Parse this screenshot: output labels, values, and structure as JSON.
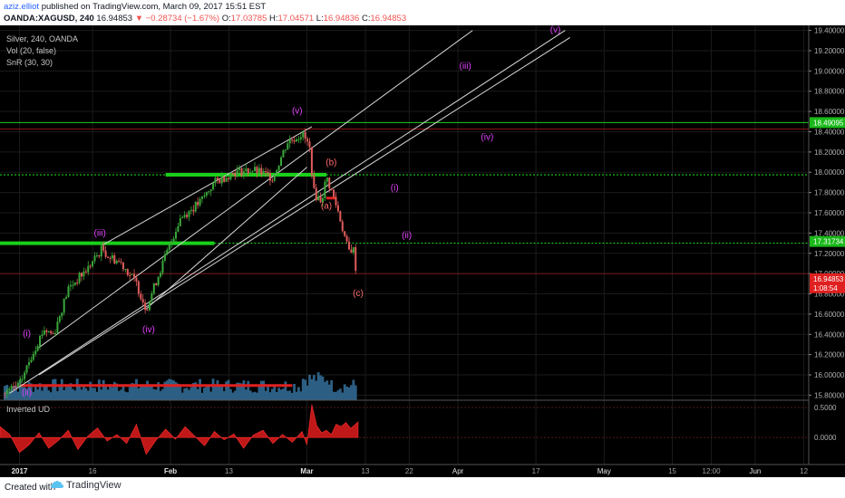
{
  "header": {
    "username": "aziz.elliot",
    "published": " published on TradingView.com, March 09, 2017 15:51 EST",
    "symbol": "OANDA:XAGUSD, 240",
    "last": "16.94853",
    "change": "▼ −0.28734 (−1.67%)",
    "o_label": "O:",
    "o_val": "17.03785",
    "h_label": "H:",
    "h_val": "17.04571",
    "l_label": "L:",
    "l_val": "16.94836",
    "c_label": "C:",
    "c_val": "16.94853"
  },
  "footer": {
    "created_with": "Created with",
    "brand": "TradingView"
  },
  "colors": {
    "background": "#000000",
    "up": "#3aa83a",
    "down": "#e05c5c",
    "volume": "#2d5f84",
    "wave_label": "#e040fb",
    "corrective_label": "#ff6b6b",
    "support": "#19d119",
    "resistance": "#e02020",
    "indicator": "#c01818"
  },
  "chart_data": [
    {
      "type": "candlestick",
      "title": "Silver, 240, OANDA",
      "studies": [
        "Vol (20, false)",
        "SnR (30, 30)"
      ],
      "ylim": [
        15.75,
        19.45
      ],
      "y_ticks": [
        "19.40000",
        "19.20000",
        "19.00000",
        "18.80000",
        "18.60000",
        "18.40000",
        "18.20000",
        "18.00000",
        "17.80000",
        "17.60000",
        "17.40000",
        "17.20000",
        "17.00000",
        "16.80000",
        "16.60000",
        "16.40000",
        "16.20000",
        "16.00000",
        "15.80000"
      ],
      "x_ticks": [
        "2017",
        "16",
        "Feb",
        "13",
        "Mar",
        "13",
        "22",
        "Apr",
        "17",
        "May",
        "15",
        "12:00",
        "Jun",
        "12"
      ],
      "x_tick_days": [
        0,
        15,
        31,
        43,
        59,
        71,
        80,
        90,
        106,
        120,
        134,
        142,
        151,
        161
      ],
      "x_range_days": [
        -4,
        162
      ],
      "price_path": [
        {
          "day": -3,
          "price": 15.82
        },
        {
          "day": 0,
          "price": 15.9
        },
        {
          "day": 3,
          "price": 16.25
        },
        {
          "day": 5,
          "price": 16.45
        },
        {
          "day": 7,
          "price": 16.4
        },
        {
          "day": 10,
          "price": 16.85
        },
        {
          "day": 14,
          "price": 17.05
        },
        {
          "day": 17,
          "price": 17.25
        },
        {
          "day": 18,
          "price": 17.18
        },
        {
          "day": 21,
          "price": 17.1
        },
        {
          "day": 24,
          "price": 16.9
        },
        {
          "day": 26,
          "price": 16.65
        },
        {
          "day": 29,
          "price": 17.05
        },
        {
          "day": 33,
          "price": 17.55
        },
        {
          "day": 37,
          "price": 17.7
        },
        {
          "day": 40,
          "price": 17.9
        },
        {
          "day": 44,
          "price": 18.0
        },
        {
          "day": 48,
          "price": 18.02
        },
        {
          "day": 52,
          "price": 17.95
        },
        {
          "day": 55,
          "price": 18.3
        },
        {
          "day": 57,
          "price": 18.35
        },
        {
          "day": 58,
          "price": 18.38
        },
        {
          "day": 59.5,
          "price": 18.25
        },
        {
          "day": 60.5,
          "price": 17.78
        },
        {
          "day": 62,
          "price": 17.72
        },
        {
          "day": 63,
          "price": 17.95
        },
        {
          "day": 64,
          "price": 17.82
        },
        {
          "day": 65.5,
          "price": 17.6
        },
        {
          "day": 67.5,
          "price": 17.22
        },
        {
          "day": 68.5,
          "price": 17.25
        },
        {
          "day": 69.3,
          "price": 16.95
        }
      ],
      "price_labels": [
        {
          "value": "18.49095",
          "price": 18.49,
          "color": "#19b919"
        },
        {
          "value": "17.31734",
          "price": 17.317,
          "color": "#19b919"
        },
        {
          "value": "16.94853",
          "price": 16.94853,
          "color": "#e02020"
        },
        {
          "value": "1:08:54",
          "price": 16.86,
          "color": "#e02020"
        }
      ],
      "levels": [
        {
          "price": 18.49,
          "color": "#19d119",
          "style": "solid",
          "from_day": -4,
          "to_day": 162,
          "weight": 1
        },
        {
          "price": 18.425,
          "color": "#e02020",
          "style": "solid",
          "from_day": -4,
          "to_day": 162,
          "weight": 0.6
        },
        {
          "price": 17.975,
          "color": "#19d119",
          "style": "dotted",
          "from_day": -4,
          "to_day": 162,
          "weight": 1.2
        },
        {
          "price": 17.975,
          "color": "#19d119",
          "style": "solid",
          "from_day": 30,
          "to_day": 63,
          "weight": 4
        },
        {
          "price": 17.3,
          "color": "#19d119",
          "style": "solid",
          "from_day": -4,
          "to_day": 40,
          "weight": 4
        },
        {
          "price": 17.3,
          "color": "#19d119",
          "style": "dotted",
          "from_day": 40,
          "to_day": 162,
          "weight": 1.2
        },
        {
          "price": 17.0,
          "color": "#e02020",
          "style": "solid",
          "from_day": -4,
          "to_day": 162,
          "weight": 0.6
        },
        {
          "price": 15.895,
          "color": "#e02020",
          "style": "solid",
          "from_day": 0,
          "to_day": 56,
          "weight": 3
        },
        {
          "price": 17.745,
          "color": "#e02020",
          "style": "solid",
          "from_day": 63,
          "to_day": 65,
          "weight": 3
        }
      ],
      "trendlines": [
        {
          "from": [
            4,
            16.27
          ],
          "to": [
            93,
            19.4
          ]
        },
        {
          "from": [
            -2,
            15.82
          ],
          "to": [
            112,
            19.4
          ]
        },
        {
          "from": [
            4,
            16.0
          ],
          "to": [
            113,
            19.33
          ]
        },
        {
          "from": [
            17,
            17.28
          ],
          "to": [
            60,
            18.45
          ]
        },
        {
          "from": [
            26,
            16.65
          ],
          "to": [
            59,
            18.05
          ]
        }
      ],
      "wave_labels": [
        {
          "text": "(i)",
          "day": 1.5,
          "price": 16.38,
          "color": "#e040fb"
        },
        {
          "text": "(ii)",
          "day": 1.5,
          "price": 15.8,
          "color": "#e040fb"
        },
        {
          "text": "(iii)",
          "day": 16.5,
          "price": 17.37,
          "color": "#e040fb"
        },
        {
          "text": "(iv)",
          "day": 26.5,
          "price": 16.42,
          "color": "#e040fb"
        },
        {
          "text": "(v)",
          "day": 57,
          "price": 18.58,
          "color": "#e040fb"
        },
        {
          "text": "(b)",
          "day": 64,
          "price": 18.07,
          "color": "#ff6b6b"
        },
        {
          "text": "(a)",
          "day": 63,
          "price": 17.64,
          "color": "#ff6b6b"
        },
        {
          "text": "(c)",
          "day": 69.5,
          "price": 16.78,
          "color": "#ff6b6b"
        },
        {
          "text": "(i)",
          "day": 77,
          "price": 17.82,
          "color": "#e040fb"
        },
        {
          "text": "(ii)",
          "day": 79.5,
          "price": 17.35,
          "color": "#e040fb"
        },
        {
          "text": "(iii)",
          "day": 91.5,
          "price": 19.02,
          "color": "#e040fb"
        },
        {
          "text": "(iv)",
          "day": 96,
          "price": 18.32,
          "color": "#e040fb"
        },
        {
          "text": "(v)",
          "day": 110,
          "price": 19.38,
          "color": "#e040fb"
        }
      ]
    },
    {
      "type": "area",
      "title": "Inverted UD",
      "ylim": [
        -0.45,
        0.62
      ],
      "y_ticks": [
        "0.5000",
        "0.0000"
      ],
      "y_tick_values": [
        0.5,
        0.0
      ],
      "x": [
        -4,
        -2,
        0,
        2,
        4,
        6,
        8,
        10,
        12,
        14,
        16,
        18,
        20,
        22,
        24,
        26,
        28,
        30,
        32,
        34,
        36,
        38,
        40,
        42,
        44,
        46,
        48,
        50,
        52,
        54,
        56,
        58,
        59,
        60,
        61,
        62,
        63,
        64,
        65,
        66,
        67,
        68,
        69.5
      ],
      "values": [
        0.18,
        0.05,
        -0.25,
        -0.12,
        0.08,
        -0.18,
        -0.05,
        0.12,
        -0.2,
        0.02,
        0.16,
        -0.06,
        0.05,
        -0.1,
        0.22,
        -0.28,
        -0.05,
        0.14,
        -0.03,
        0.18,
        0.02,
        -0.14,
        0.1,
        -0.04,
        0.06,
        -0.18,
        0.04,
        0.12,
        -0.1,
        0.05,
        -0.08,
        0.1,
        -0.12,
        0.55,
        0.2,
        0.08,
        0.12,
        0.05,
        0.22,
        0.18,
        0.25,
        0.15,
        0.26
      ]
    }
  ]
}
